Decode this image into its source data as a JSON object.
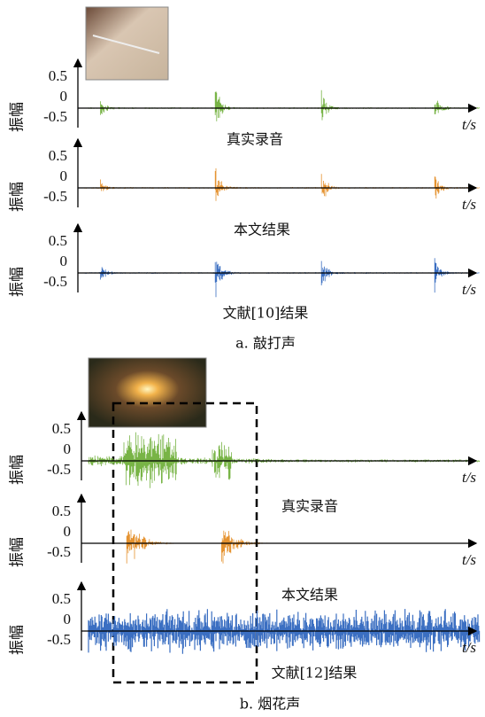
{
  "panels": [
    {
      "caption": "a. 敲打声",
      "plots": [
        {
          "label": "真实录音",
          "ylabel": "振幅",
          "xlabel": "t/s",
          "yticks": [
            0.5,
            0,
            -0.5
          ]
        },
        {
          "label": "本文结果",
          "ylabel": "振幅",
          "xlabel": "t/s",
          "yticks": [
            0.5,
            0,
            -0.5
          ]
        },
        {
          "label": "文献[10]结果",
          "ylabel": "振幅",
          "xlabel": "t/s",
          "yticks": [
            0.5,
            0,
            -0.5
          ]
        }
      ]
    },
    {
      "caption": "b. 烟花声",
      "plots": [
        {
          "label": "真实录音",
          "ylabel": "振幅",
          "xlabel": "t/s",
          "yticks": [
            0.5,
            0,
            -0.5
          ]
        },
        {
          "label": "本文结果",
          "ylabel": "振幅",
          "xlabel": "t/s",
          "yticks": [
            0.5,
            0,
            -0.5
          ]
        },
        {
          "label": "文献[12]结果",
          "ylabel": "振幅",
          "xlabel": "t/s",
          "yticks": [
            0.5,
            0,
            -0.5
          ]
        }
      ]
    }
  ]
}
